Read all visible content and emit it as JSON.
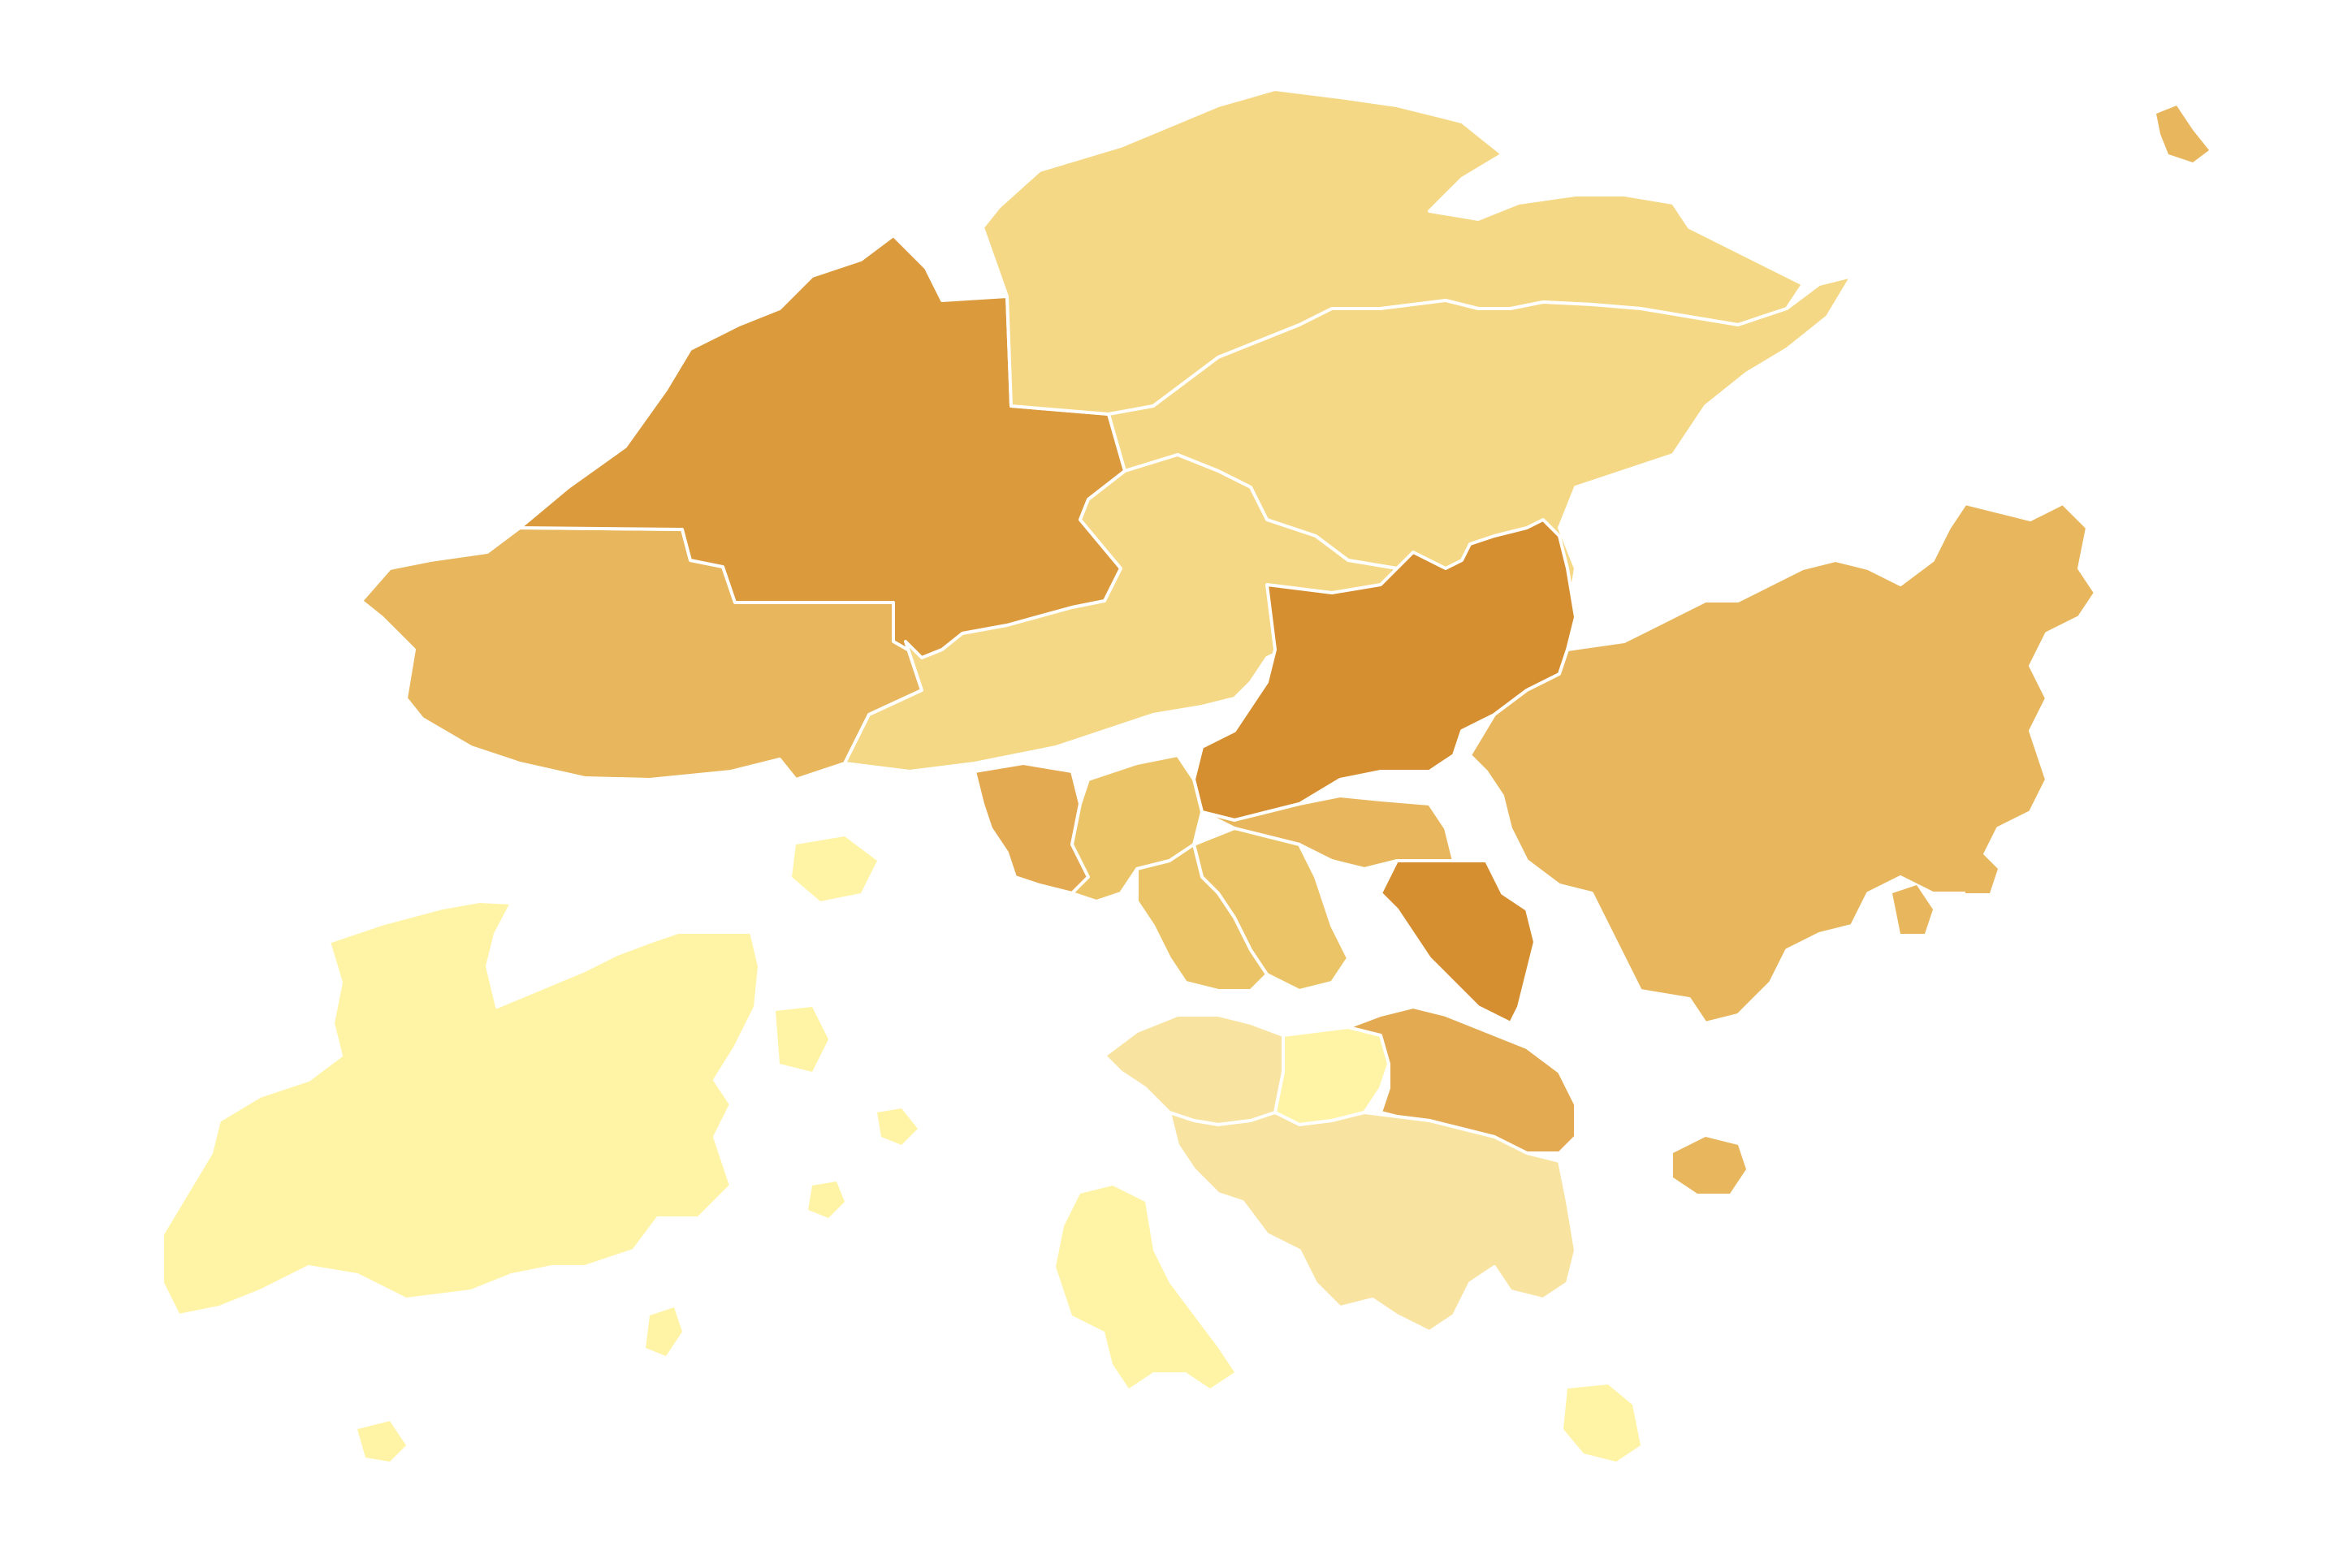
{
  "map": {
    "type": "choropleth",
    "region": "Hong Kong",
    "title": "",
    "legend": "",
    "border_color": "#ffffff",
    "background_color": "#ffffff",
    "scale": {
      "level_1": "#fff4a6",
      "level_2": "#f8e4a0",
      "level_3": "#f5d885",
      "level_4": "#ecc468",
      "level_5": "#e8b65c",
      "level_6": "#e4aa52",
      "level_7": "#db9a3c",
      "level_8": "#d68f30"
    },
    "districts": [
      {
        "id": "north",
        "level": 3
      },
      {
        "id": "tai-po",
        "level": 3
      },
      {
        "id": "yuen-long",
        "level": 7
      },
      {
        "id": "tuen-mun",
        "level": 5
      },
      {
        "id": "tsuen-wan",
        "level": 3
      },
      {
        "id": "sha-tin",
        "level": 8
      },
      {
        "id": "sai-kung",
        "level": 5
      },
      {
        "id": "kwai-tsing",
        "level": 6
      },
      {
        "id": "sham-shui-po",
        "level": 4
      },
      {
        "id": "kowloon-city",
        "level": 4
      },
      {
        "id": "wong-tai-sin",
        "level": 5
      },
      {
        "id": "kwun-tong",
        "level": 8
      },
      {
        "id": "yau-tsim-mong",
        "level": 4
      },
      {
        "id": "central-western",
        "level": 2
      },
      {
        "id": "wan-chai",
        "level": 1
      },
      {
        "id": "eastern",
        "level": 6
      },
      {
        "id": "southern",
        "level": 2
      },
      {
        "id": "islands",
        "level": 1
      }
    ]
  }
}
